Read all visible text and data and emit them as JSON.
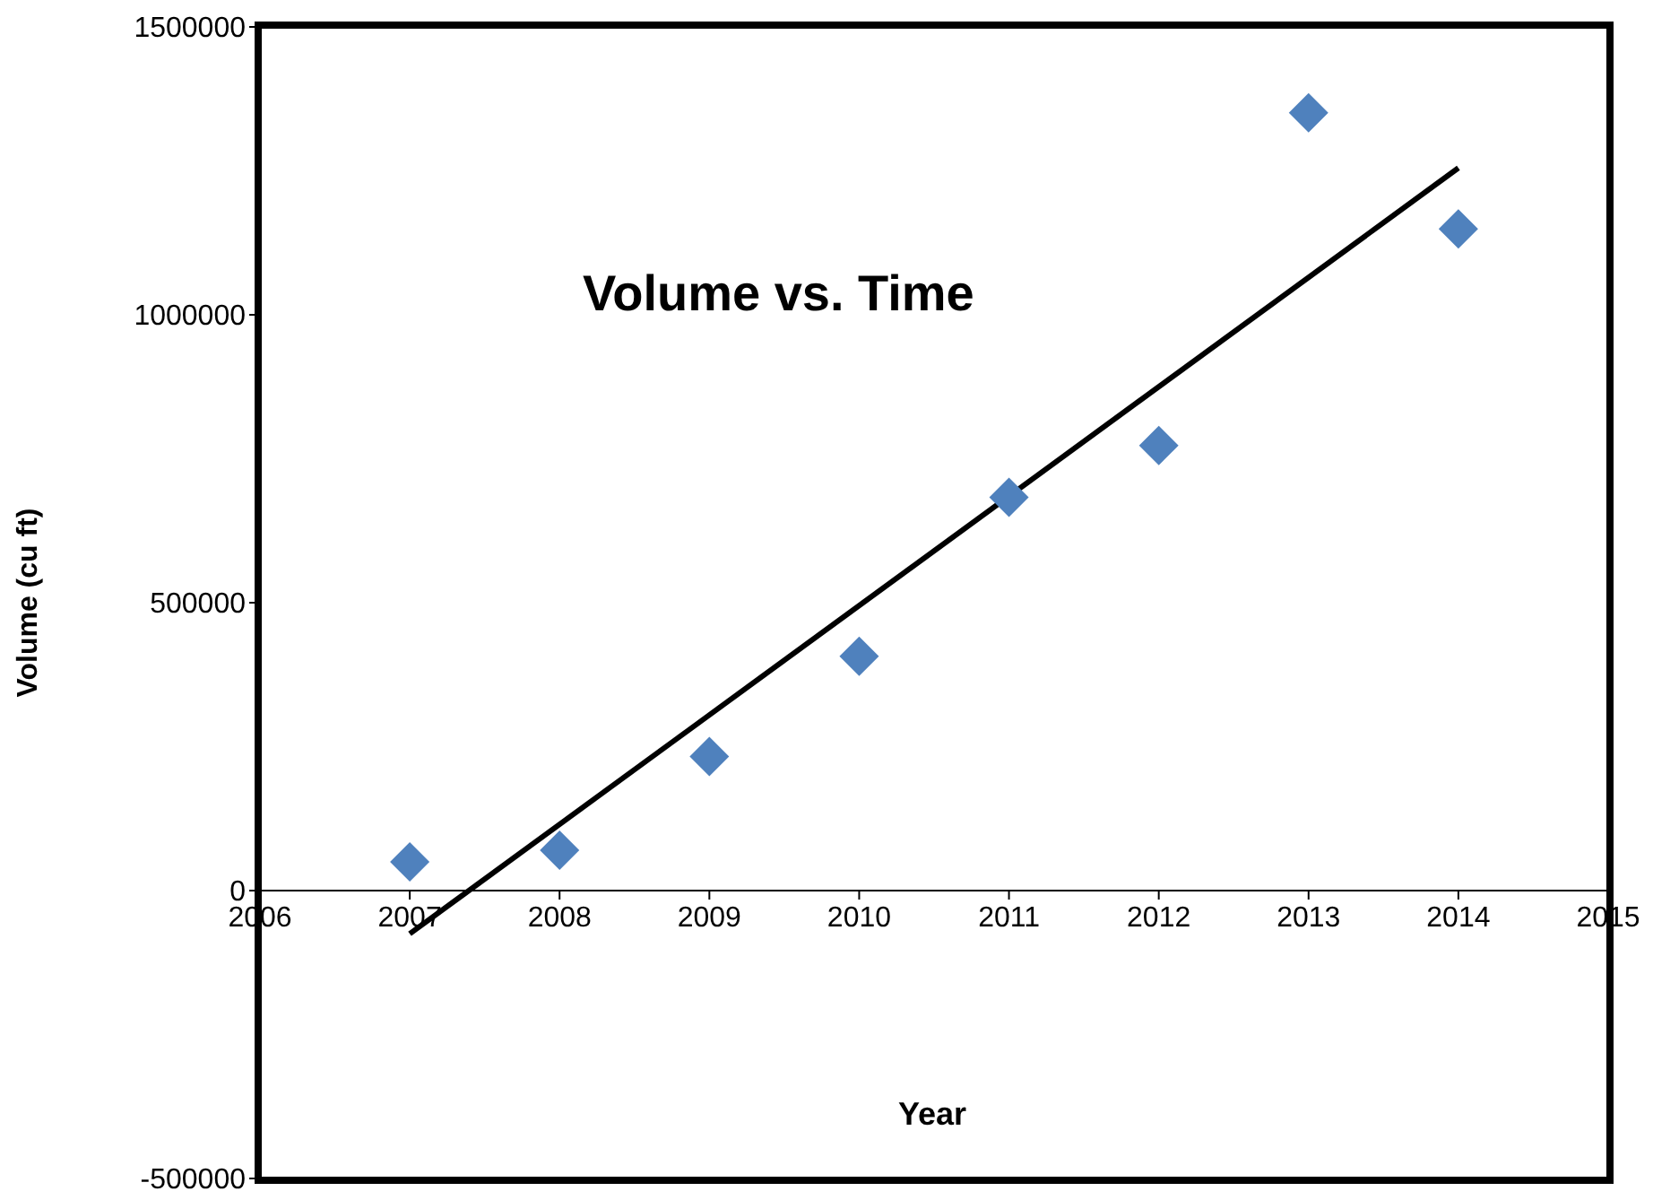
{
  "chart_data": {
    "type": "scatter",
    "title": "Volume vs. Time",
    "xlabel": "Year",
    "ylabel": "Volume (cu ft)",
    "grid": false,
    "legend": false,
    "xlim": [
      2006,
      2015
    ],
    "xticks": [
      2006,
      2007,
      2008,
      2009,
      2010,
      2011,
      2012,
      2013,
      2014,
      2015
    ],
    "ylim": [
      -500000,
      1500000
    ],
    "yticks": [
      -500000,
      0,
      500000,
      1000000,
      1500000
    ],
    "series": [
      {
        "color": "#4f81bd",
        "marker": "diamond",
        "x": [
          2007,
          2008,
          2009,
          2010,
          2011,
          2012,
          2013,
          2014
        ],
        "values": [
          50000,
          70000,
          233000,
          407000,
          683000,
          773000,
          1351000,
          1149000
        ]
      },
      {
        "type": "line",
        "marker": "none",
        "color": "#000000",
        "x": [
          2007,
          2014
        ],
        "values": [
          -75000,
          1255000
        ]
      }
    ]
  }
}
